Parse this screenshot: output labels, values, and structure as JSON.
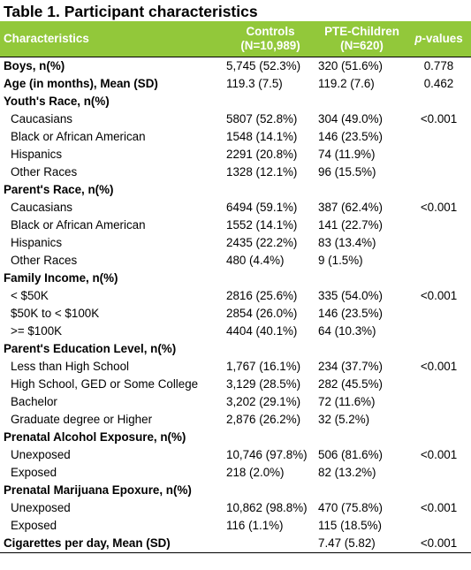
{
  "title": "Table 1. Participant characteristics",
  "header": {
    "characteristics": "Characteristics",
    "controls_line1": "Controls",
    "controls_line2": "(N=10,989)",
    "pte_line1": "PTE-Children",
    "pte_line2": "(N=620)",
    "p_label": "p",
    "p_suffix": "-values"
  },
  "rows": [
    {
      "label": "Boys, n(%)",
      "bold": true,
      "sub": false,
      "controls": "5,745 (52.3%)",
      "pte": "320 (51.6%)",
      "p": "0.778"
    },
    {
      "label": "Age (in months), Mean (SD)",
      "bold": true,
      "sub": false,
      "controls": "119.3 (7.5)",
      "pte": "119.2 (7.6)",
      "p": "0.462"
    },
    {
      "label": "Youth's Race, n(%)",
      "bold": true,
      "sub": false,
      "controls": "",
      "pte": "",
      "p": ""
    },
    {
      "label": "Caucasians",
      "bold": false,
      "sub": true,
      "controls": "5807 (52.8%)",
      "pte": "304 (49.0%)",
      "p": "<0.001"
    },
    {
      "label": "Black or African American",
      "bold": false,
      "sub": true,
      "controls": "1548 (14.1%)",
      "pte": "146 (23.5%)",
      "p": ""
    },
    {
      "label": "Hispanics",
      "bold": false,
      "sub": true,
      "controls": "2291 (20.8%)",
      "pte": "74 (11.9%)",
      "p": ""
    },
    {
      "label": "Other Races",
      "bold": false,
      "sub": true,
      "controls": "1328 (12.1%)",
      "pte": "96 (15.5%)",
      "p": ""
    },
    {
      "label": "Parent's Race, n(%)",
      "bold": true,
      "sub": false,
      "controls": "",
      "pte": "",
      "p": ""
    },
    {
      "label": "Caucasians",
      "bold": false,
      "sub": true,
      "controls": "6494 (59.1%)",
      "pte": "387 (62.4%)",
      "p": "<0.001"
    },
    {
      "label": "Black or African American",
      "bold": false,
      "sub": true,
      "controls": "1552 (14.1%)",
      "pte": "141 (22.7%)",
      "p": ""
    },
    {
      "label": "Hispanics",
      "bold": false,
      "sub": true,
      "controls": "2435 (22.2%)",
      "pte": "83 (13.4%)",
      "p": ""
    },
    {
      "label": "Other Races",
      "bold": false,
      "sub": true,
      "controls": "480 (4.4%)",
      "pte": "9 (1.5%)",
      "p": ""
    },
    {
      "label": "Family Income, n(%)",
      "bold": true,
      "sub": false,
      "controls": "",
      "pte": "",
      "p": ""
    },
    {
      "label": "< $50K",
      "bold": false,
      "sub": true,
      "controls": "2816 (25.6%)",
      "pte": "335 (54.0%)",
      "p": "<0.001"
    },
    {
      "label": "$50K to < $100K",
      "bold": false,
      "sub": true,
      "controls": "2854 (26.0%)",
      "pte": "146 (23.5%)",
      "p": ""
    },
    {
      "label": ">= $100K",
      "bold": false,
      "sub": true,
      "controls": "4404 (40.1%)",
      "pte": "64 (10.3%)",
      "p": ""
    },
    {
      "label": "Parent's Education Level, n(%)",
      "bold": true,
      "sub": false,
      "controls": "",
      "pte": "",
      "p": ""
    },
    {
      "label": "Less than High School",
      "bold": false,
      "sub": true,
      "controls": "1,767 (16.1%)",
      "pte": "234 (37.7%)",
      "p": "<0.001"
    },
    {
      "label": "High School, GED or Some College",
      "bold": false,
      "sub": true,
      "controls": "3,129 (28.5%)",
      "pte": "282 (45.5%)",
      "p": ""
    },
    {
      "label": "Bachelor",
      "bold": false,
      "sub": true,
      "controls": "3,202 (29.1%)",
      "pte": "72 (11.6%)",
      "p": ""
    },
    {
      "label": "Graduate degree or Higher",
      "bold": false,
      "sub": true,
      "controls": "2,876 (26.2%)",
      "pte": "32 (5.2%)",
      "p": ""
    },
    {
      "label": "Prenatal Alcohol Exposure, n(%)",
      "bold": true,
      "sub": false,
      "controls": "",
      "pte": "",
      "p": ""
    },
    {
      "label": "Unexposed",
      "bold": false,
      "sub": true,
      "controls": "10,746 (97.8%)",
      "pte": "506 (81.6%)",
      "p": "<0.001"
    },
    {
      "label": "Exposed",
      "bold": false,
      "sub": true,
      "controls": "218 (2.0%)",
      "pte": "82 (13.2%)",
      "p": ""
    },
    {
      "label": "Prenatal Marijuana Epoxure, n(%)",
      "bold": true,
      "sub": false,
      "controls": "",
      "pte": "",
      "p": ""
    },
    {
      "label": "Unexposed",
      "bold": false,
      "sub": true,
      "controls": "10,862 (98.8%)",
      "pte": "470 (75.8%)",
      "p": "<0.001"
    },
    {
      "label": "Exposed",
      "bold": false,
      "sub": true,
      "controls": "116 (1.1%)",
      "pte": "115 (18.5%)",
      "p": ""
    },
    {
      "label": "Cigarettes per day, Mean (SD)",
      "bold": true,
      "sub": false,
      "controls": "",
      "pte": "7.47 (5.82)",
      "p": "<0.001"
    }
  ],
  "colors": {
    "header_bg": "#92c83a",
    "header_text": "#ffffff"
  }
}
